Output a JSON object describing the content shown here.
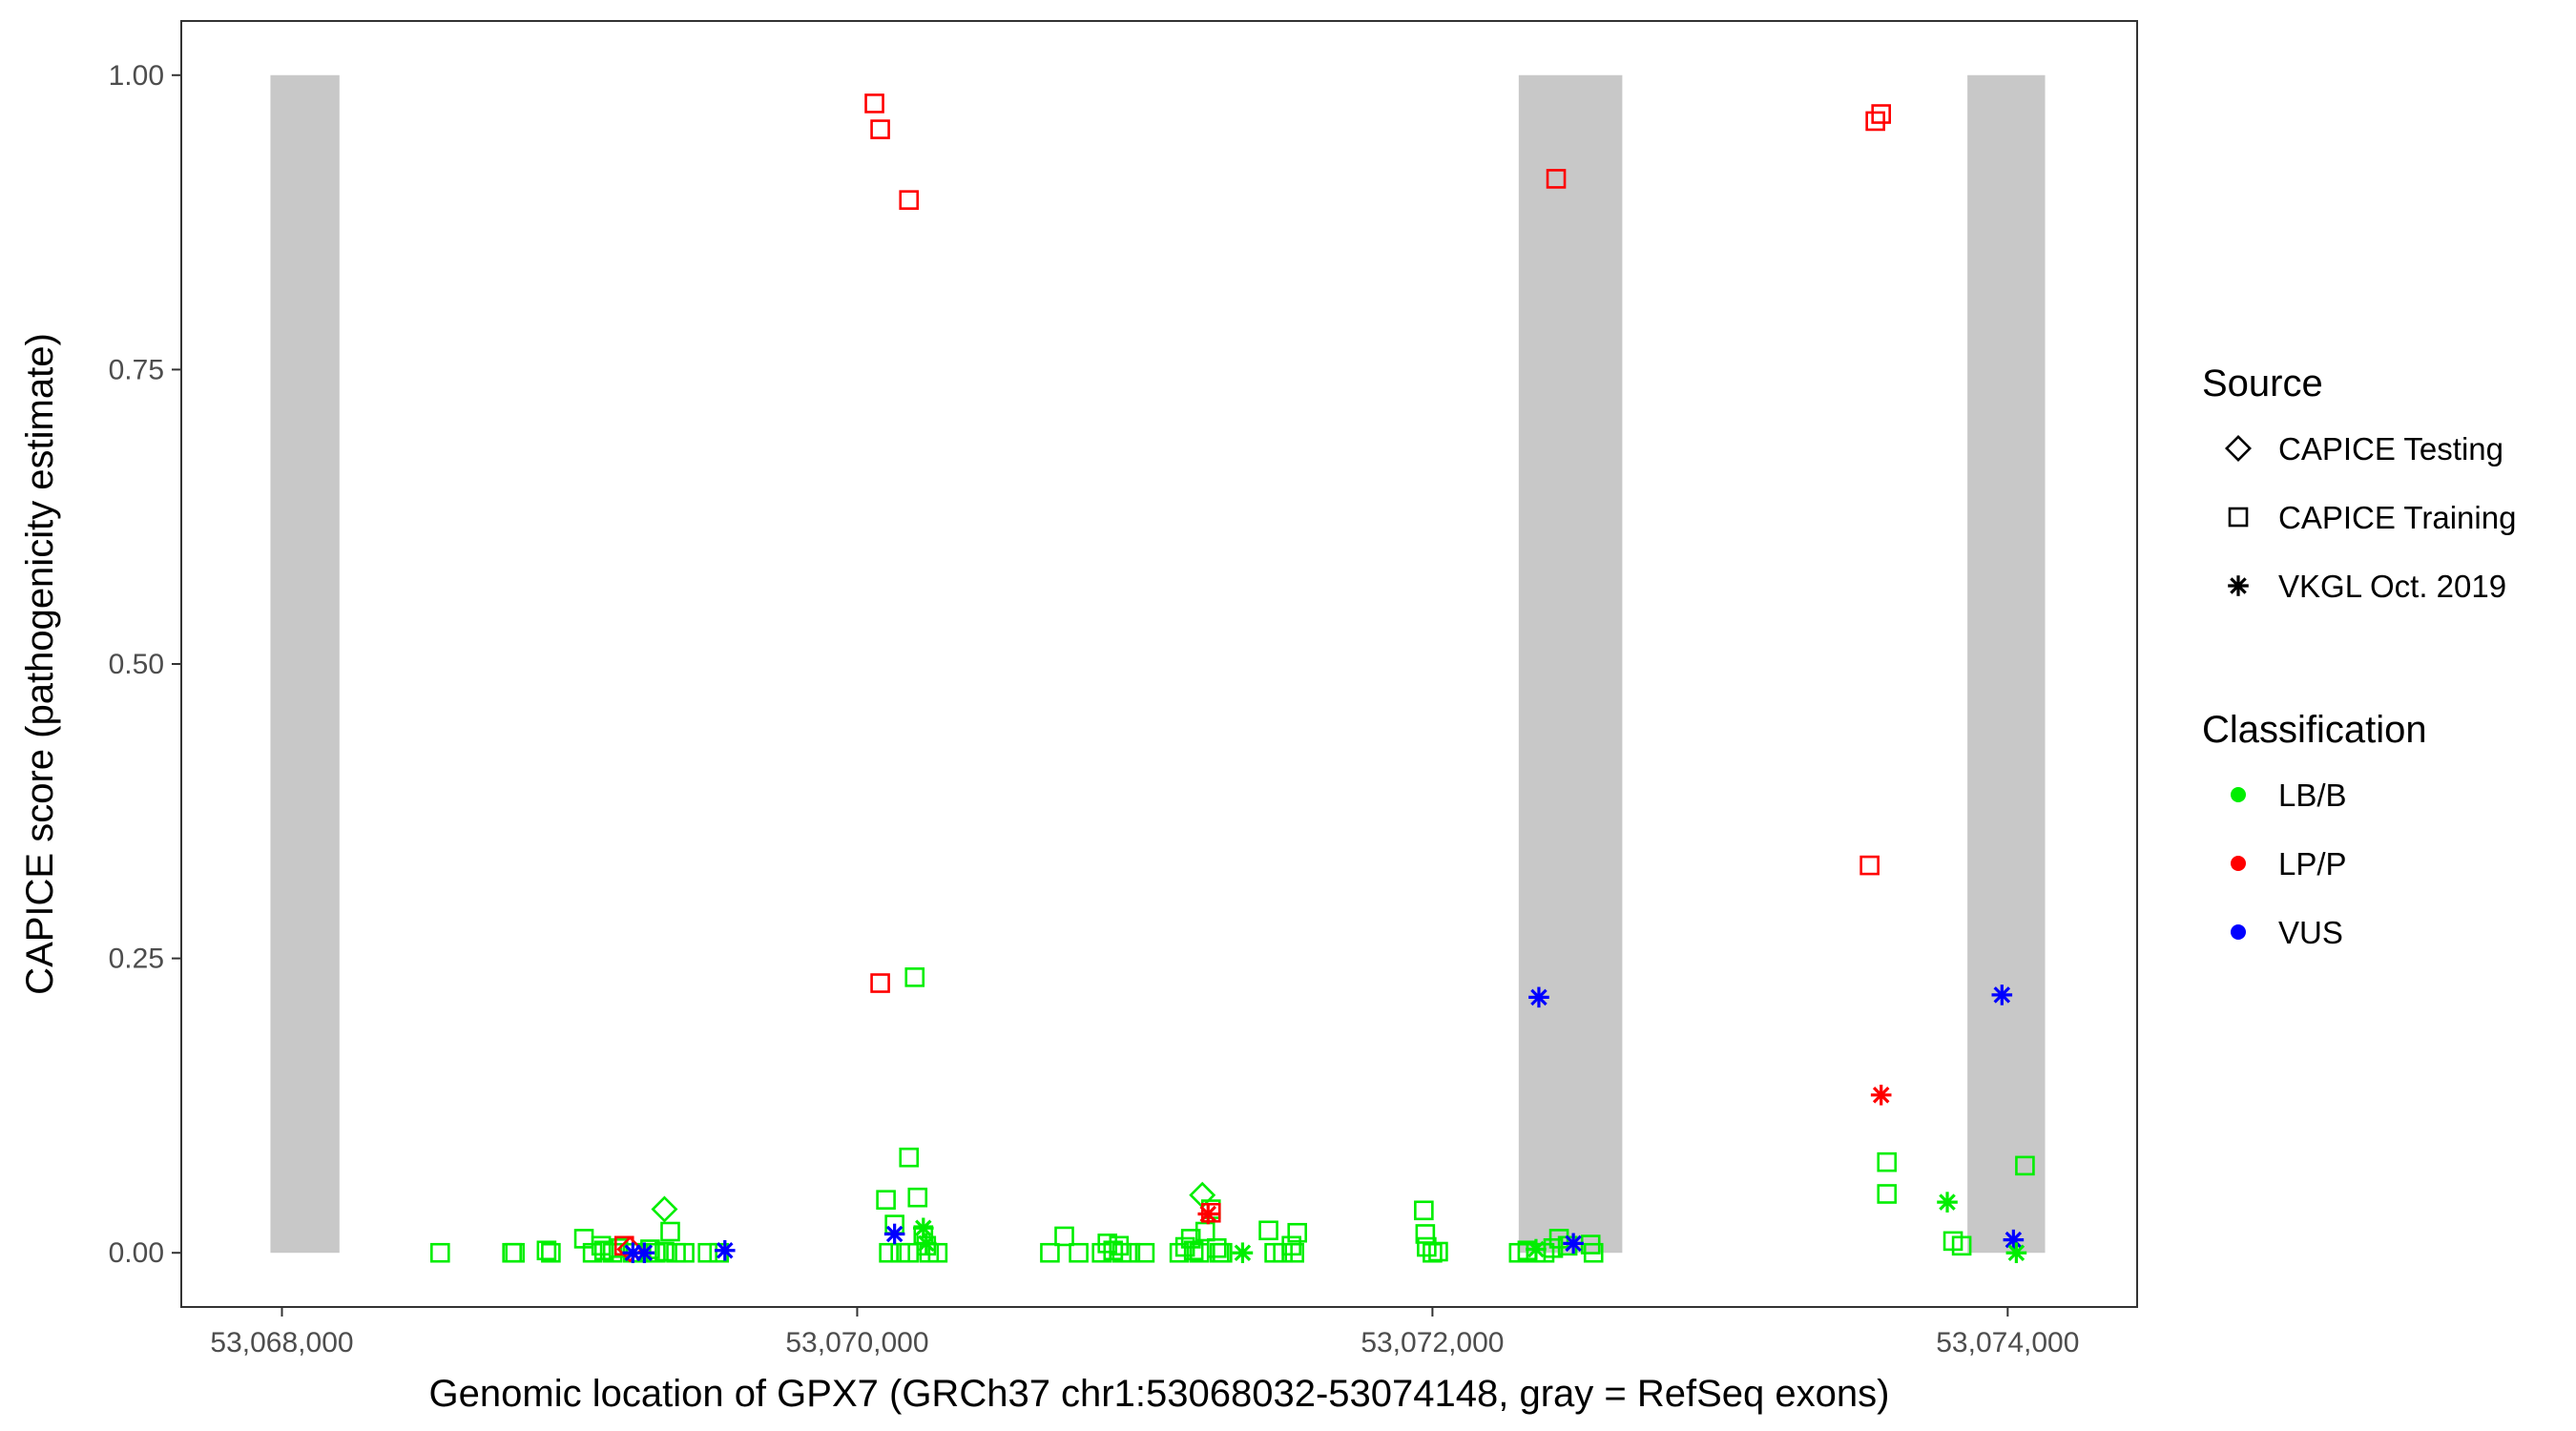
{
  "chart_data": {
    "type": "scatter",
    "xlabel": "Genomic location of GPX7 (GRCh37 chr1:53068032-53074148, gray = RefSeq exons)",
    "ylabel": "CAPICE score (pathogenicity estimate)",
    "xlim": [
      53067650,
      53074450
    ],
    "ylim": [
      -0.046,
      1.046
    ],
    "x_ticks": [
      53068000,
      53070000,
      53072000,
      53074000
    ],
    "x_tick_labels": [
      "53,068,000",
      "53,070,000",
      "53,072,000",
      "53,074,000"
    ],
    "y_ticks": [
      0,
      0.25,
      0.5,
      0.75,
      1.0
    ],
    "y_tick_labels": [
      "0.00",
      "0.25",
      "0.50",
      "0.75",
      "1.00"
    ],
    "exons": [
      {
        "start": 53067960,
        "end": 53068200
      },
      {
        "start": 53072300,
        "end": 53072660
      },
      {
        "start": 53073860,
        "end": 53074130
      }
    ],
    "exon_color": "#c8c8c8",
    "colors": {
      "LB/B": "#00ee00",
      "LP/P": "#ff0000",
      "VUS": "#0000ff"
    },
    "legend_position": "right",
    "legend": {
      "source_title": "Source",
      "source_items": [
        {
          "label": "CAPICE Testing",
          "shape": "diamond"
        },
        {
          "label": "CAPICE Training",
          "shape": "square"
        },
        {
          "label": "VKGL Oct. 2019",
          "shape": "star"
        }
      ],
      "class_title": "Classification",
      "class_items": [
        {
          "label": "LB/B",
          "color": "#00ee00"
        },
        {
          "label": "LP/P",
          "color": "#ff0000"
        },
        {
          "label": "VUS",
          "color": "#0000ff"
        }
      ]
    },
    "points": [
      {
        "x": 53068550,
        "y": 0.0,
        "source": "CAPICE Training",
        "class": "LB/B"
      },
      {
        "x": 53068800,
        "y": 0.0,
        "source": "CAPICE Training",
        "class": "LB/B"
      },
      {
        "x": 53068810,
        "y": 0.0,
        "source": "CAPICE Training",
        "class": "LB/B"
      },
      {
        "x": 53068920,
        "y": 0.002,
        "source": "CAPICE Training",
        "class": "LB/B"
      },
      {
        "x": 53068935,
        "y": 0.0,
        "source": "CAPICE Training",
        "class": "LB/B"
      },
      {
        "x": 53069050,
        "y": 0.012,
        "source": "CAPICE Training",
        "class": "LB/B"
      },
      {
        "x": 53069080,
        "y": 0.0,
        "source": "CAPICE Training",
        "class": "LB/B"
      },
      {
        "x": 53069110,
        "y": 0.006,
        "source": "CAPICE Training",
        "class": "LB/B"
      },
      {
        "x": 53069120,
        "y": 0.002,
        "source": "CAPICE Training",
        "class": "LB/B"
      },
      {
        "x": 53069150,
        "y": 0.0,
        "source": "CAPICE Training",
        "class": "LB/B"
      },
      {
        "x": 53069170,
        "y": 0.004,
        "source": "CAPICE Training",
        "class": "LB/B"
      },
      {
        "x": 53069190,
        "y": 0.006,
        "source": "CAPICE Training",
        "class": "LP/P"
      },
      {
        "x": 53069220,
        "y": 0.0,
        "source": "CAPICE Training",
        "class": "LB/B"
      },
      {
        "x": 53069250,
        "y": 0.0,
        "source": "CAPICE Training",
        "class": "LB/B"
      },
      {
        "x": 53069280,
        "y": 0.003,
        "source": "CAPICE Training",
        "class": "LB/B"
      },
      {
        "x": 53069300,
        "y": 0.0,
        "source": "CAPICE Training",
        "class": "LB/B"
      },
      {
        "x": 53069330,
        "y": 0.001,
        "source": "CAPICE Training",
        "class": "LB/B"
      },
      {
        "x": 53069350,
        "y": 0.018,
        "source": "CAPICE Training",
        "class": "LB/B"
      },
      {
        "x": 53069370,
        "y": 0.0,
        "source": "CAPICE Training",
        "class": "LB/B"
      },
      {
        "x": 53069400,
        "y": 0.0,
        "source": "CAPICE Training",
        "class": "LB/B"
      },
      {
        "x": 53069480,
        "y": 0.0,
        "source": "CAPICE Training",
        "class": "LB/B"
      },
      {
        "x": 53069520,
        "y": 0.0,
        "source": "CAPICE Training",
        "class": "LB/B"
      },
      {
        "x": 53069330,
        "y": 0.037,
        "source": "CAPICE Testing",
        "class": "LB/B"
      },
      {
        "x": 53069210,
        "y": 0.003,
        "source": "CAPICE Testing",
        "class": "LP/P"
      },
      {
        "x": 53069220,
        "y": 0.0,
        "source": "VKGL Oct. 2019",
        "class": "VUS"
      },
      {
        "x": 53069260,
        "y": 0.0,
        "source": "VKGL Oct. 2019",
        "class": "VUS"
      },
      {
        "x": 53069540,
        "y": 0.002,
        "source": "VKGL Oct. 2019",
        "class": "VUS"
      },
      {
        "x": 53070060,
        "y": 0.976,
        "source": "CAPICE Training",
        "class": "LP/P"
      },
      {
        "x": 53070080,
        "y": 0.954,
        "source": "CAPICE Training",
        "class": "LP/P"
      },
      {
        "x": 53070180,
        "y": 0.894,
        "source": "CAPICE Training",
        "class": "LP/P"
      },
      {
        "x": 53070080,
        "y": 0.229,
        "source": "CAPICE Training",
        "class": "LP/P"
      },
      {
        "x": 53070200,
        "y": 0.234,
        "source": "CAPICE Training",
        "class": "LB/B"
      },
      {
        "x": 53070180,
        "y": 0.081,
        "source": "CAPICE Training",
        "class": "LB/B"
      },
      {
        "x": 53070100,
        "y": 0.045,
        "source": "CAPICE Training",
        "class": "LB/B"
      },
      {
        "x": 53070210,
        "y": 0.047,
        "source": "CAPICE Training",
        "class": "LB/B"
      },
      {
        "x": 53070130,
        "y": 0.024,
        "source": "CAPICE Training",
        "class": "LB/B"
      },
      {
        "x": 53070230,
        "y": 0.015,
        "source": "CAPICE Training",
        "class": "LB/B"
      },
      {
        "x": 53070240,
        "y": 0.006,
        "source": "CAPICE Training",
        "class": "LB/B"
      },
      {
        "x": 53070110,
        "y": 0.0,
        "source": "CAPICE Training",
        "class": "LB/B"
      },
      {
        "x": 53070150,
        "y": 0.0,
        "source": "CAPICE Training",
        "class": "LB/B"
      },
      {
        "x": 53070180,
        "y": 0.0,
        "source": "CAPICE Training",
        "class": "LB/B"
      },
      {
        "x": 53070250,
        "y": 0.0,
        "source": "CAPICE Training",
        "class": "LB/B"
      },
      {
        "x": 53070280,
        "y": 0.0,
        "source": "CAPICE Training",
        "class": "LB/B"
      },
      {
        "x": 53070130,
        "y": 0.016,
        "source": "VKGL Oct. 2019",
        "class": "VUS"
      },
      {
        "x": 53070230,
        "y": 0.021,
        "source": "VKGL Oct. 2019",
        "class": "LB/B"
      },
      {
        "x": 53070240,
        "y": 0.008,
        "source": "VKGL Oct. 2019",
        "class": "LB/B"
      },
      {
        "x": 53070670,
        "y": 0.0,
        "source": "CAPICE Training",
        "class": "LB/B"
      },
      {
        "x": 53070720,
        "y": 0.014,
        "source": "CAPICE Training",
        "class": "LB/B"
      },
      {
        "x": 53070770,
        "y": 0.0,
        "source": "CAPICE Training",
        "class": "LB/B"
      },
      {
        "x": 53070850,
        "y": 0.0,
        "source": "CAPICE Training",
        "class": "LB/B"
      },
      {
        "x": 53070870,
        "y": 0.008,
        "source": "CAPICE Training",
        "class": "LB/B"
      },
      {
        "x": 53070890,
        "y": 0.002,
        "source": "CAPICE Training",
        "class": "LB/B"
      },
      {
        "x": 53070910,
        "y": 0.006,
        "source": "CAPICE Training",
        "class": "LB/B"
      },
      {
        "x": 53070920,
        "y": 0.0,
        "source": "CAPICE Training",
        "class": "LB/B"
      },
      {
        "x": 53070950,
        "y": 0.0,
        "source": "CAPICE Training",
        "class": "LB/B"
      },
      {
        "x": 53071000,
        "y": 0.0,
        "source": "CAPICE Training",
        "class": "LB/B"
      },
      {
        "x": 53071120,
        "y": 0.0,
        "source": "CAPICE Training",
        "class": "LB/B"
      },
      {
        "x": 53071140,
        "y": 0.005,
        "source": "CAPICE Training",
        "class": "LB/B"
      },
      {
        "x": 53071160,
        "y": 0.012,
        "source": "CAPICE Training",
        "class": "LB/B"
      },
      {
        "x": 53071170,
        "y": 0.002,
        "source": "CAPICE Training",
        "class": "LB/B"
      },
      {
        "x": 53071190,
        "y": 0.0,
        "source": "CAPICE Training",
        "class": "LB/B"
      },
      {
        "x": 53071210,
        "y": 0.018,
        "source": "CAPICE Training",
        "class": "LB/B"
      },
      {
        "x": 53071230,
        "y": 0.037,
        "source": "CAPICE Training",
        "class": "LB/B"
      },
      {
        "x": 53071250,
        "y": 0.004,
        "source": "CAPICE Training",
        "class": "LB/B"
      },
      {
        "x": 53071260,
        "y": 0.0,
        "source": "CAPICE Training",
        "class": "LB/B"
      },
      {
        "x": 53071270,
        "y": 0.0,
        "source": "CAPICE Training",
        "class": "LB/B"
      },
      {
        "x": 53071200,
        "y": 0.049,
        "source": "CAPICE Testing",
        "class": "LB/B"
      },
      {
        "x": 53071220,
        "y": 0.033,
        "source": "VKGL Oct. 2019",
        "class": "LP/P"
      },
      {
        "x": 53071230,
        "y": 0.034,
        "source": "CAPICE Training",
        "class": "LP/P"
      },
      {
        "x": 53071340,
        "y": 0.0,
        "source": "VKGL Oct. 2019",
        "class": "LB/B"
      },
      {
        "x": 53071430,
        "y": 0.019,
        "source": "CAPICE Training",
        "class": "LB/B"
      },
      {
        "x": 53071450,
        "y": 0.0,
        "source": "CAPICE Training",
        "class": "LB/B"
      },
      {
        "x": 53071480,
        "y": 0.0,
        "source": "CAPICE Training",
        "class": "LB/B"
      },
      {
        "x": 53071510,
        "y": 0.006,
        "source": "CAPICE Training",
        "class": "LB/B"
      },
      {
        "x": 53071520,
        "y": 0.0,
        "source": "CAPICE Training",
        "class": "LB/B"
      },
      {
        "x": 53071530,
        "y": 0.017,
        "source": "CAPICE Training",
        "class": "LB/B"
      },
      {
        "x": 53071970,
        "y": 0.036,
        "source": "CAPICE Training",
        "class": "LB/B"
      },
      {
        "x": 53071975,
        "y": 0.016,
        "source": "CAPICE Training",
        "class": "LB/B"
      },
      {
        "x": 53071980,
        "y": 0.005,
        "source": "CAPICE Training",
        "class": "LB/B"
      },
      {
        "x": 53072000,
        "y": 0.0,
        "source": "CAPICE Training",
        "class": "LB/B"
      },
      {
        "x": 53072020,
        "y": 0.001,
        "source": "CAPICE Training",
        "class": "LB/B"
      },
      {
        "x": 53072430,
        "y": 0.912,
        "source": "CAPICE Training",
        "class": "LP/P"
      },
      {
        "x": 53072300,
        "y": 0.0,
        "source": "CAPICE Training",
        "class": "LB/B"
      },
      {
        "x": 53072330,
        "y": 0.002,
        "source": "CAPICE Training",
        "class": "LB/B"
      },
      {
        "x": 53072360,
        "y": 0.0,
        "source": "CAPICE Training",
        "class": "LB/B"
      },
      {
        "x": 53072390,
        "y": 0.0,
        "source": "CAPICE Training",
        "class": "LB/B"
      },
      {
        "x": 53072420,
        "y": 0.004,
        "source": "CAPICE Training",
        "class": "LB/B"
      },
      {
        "x": 53072440,
        "y": 0.012,
        "source": "CAPICE Training",
        "class": "LB/B"
      },
      {
        "x": 53072470,
        "y": 0.006,
        "source": "CAPICE Training",
        "class": "LB/B"
      },
      {
        "x": 53072550,
        "y": 0.007,
        "source": "CAPICE Training",
        "class": "LB/B"
      },
      {
        "x": 53072560,
        "y": 0.0,
        "source": "CAPICE Training",
        "class": "LB/B"
      },
      {
        "x": 53072370,
        "y": 0.217,
        "source": "VKGL Oct. 2019",
        "class": "VUS"
      },
      {
        "x": 53072490,
        "y": 0.008,
        "source": "VKGL Oct. 2019",
        "class": "VUS"
      },
      {
        "x": 53072360,
        "y": 0.003,
        "source": "VKGL Oct. 2019",
        "class": "LB/B"
      },
      {
        "x": 53073560,
        "y": 0.967,
        "source": "CAPICE Training",
        "class": "LP/P"
      },
      {
        "x": 53073540,
        "y": 0.961,
        "source": "CAPICE Training",
        "class": "LP/P"
      },
      {
        "x": 53073520,
        "y": 0.329,
        "source": "CAPICE Training",
        "class": "LP/P"
      },
      {
        "x": 53073560,
        "y": 0.134,
        "source": "VKGL Oct. 2019",
        "class": "LP/P"
      },
      {
        "x": 53073580,
        "y": 0.077,
        "source": "CAPICE Training",
        "class": "LB/B"
      },
      {
        "x": 53073580,
        "y": 0.05,
        "source": "CAPICE Training",
        "class": "LB/B"
      },
      {
        "x": 53073790,
        "y": 0.043,
        "source": "VKGL Oct. 2019",
        "class": "LB/B"
      },
      {
        "x": 53073810,
        "y": 0.01,
        "source": "CAPICE Training",
        "class": "LB/B"
      },
      {
        "x": 53073840,
        "y": 0.006,
        "source": "CAPICE Training",
        "class": "LB/B"
      },
      {
        "x": 53073980,
        "y": 0.219,
        "source": "VKGL Oct. 2019",
        "class": "VUS"
      },
      {
        "x": 53074020,
        "y": 0.011,
        "source": "VKGL Oct. 2019",
        "class": "VUS"
      },
      {
        "x": 53074030,
        "y": 0.0,
        "source": "VKGL Oct. 2019",
        "class": "LB/B"
      },
      {
        "x": 53074060,
        "y": 0.074,
        "source": "CAPICE Training",
        "class": "LB/B"
      }
    ]
  }
}
